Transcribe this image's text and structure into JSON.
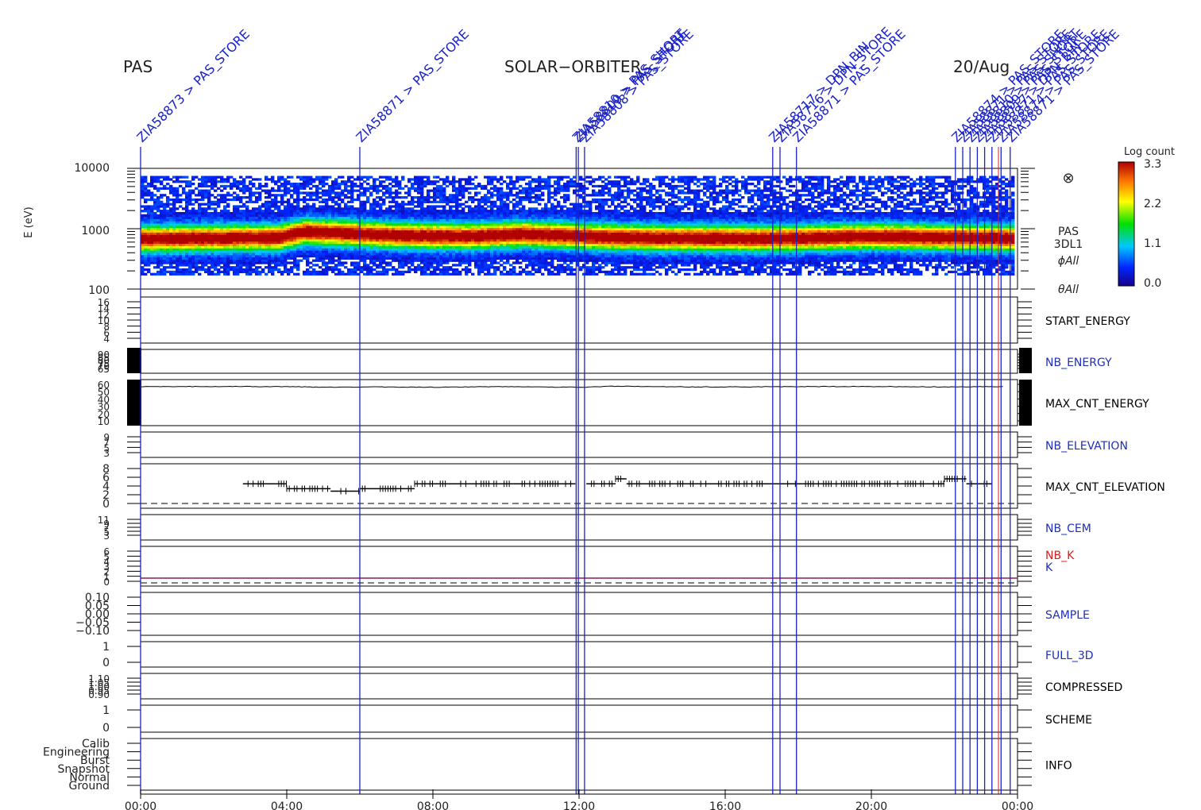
{
  "header": {
    "instrument": "PAS",
    "mission": "SOLAR−ORBITER",
    "date": "20/Aug"
  },
  "spectrogram": {
    "ylabel": "E (eV)",
    "ytick_labels": [
      "10000",
      "1000",
      "100"
    ],
    "side_labels": [
      "PAS",
      "3DL1",
      "ϕAll",
      "θAll"
    ],
    "look_direction_symbol": "⊗",
    "colorbar": {
      "title": "Log count",
      "ticks": [
        "3.3",
        "2.2",
        "1.1",
        "0.0"
      ]
    }
  },
  "x_axis": {
    "tick_labels": [
      "00:00",
      "04:00",
      "08:00",
      "12:00",
      "16:00",
      "20:00",
      "00:00"
    ]
  },
  "markers": [
    {
      "hour": 0.0,
      "label": "ZIA58873 > PAS_STORE"
    },
    {
      "hour": 6.0,
      "label": "ZIA58871 > PAS_STORE"
    },
    {
      "hour": 11.92,
      "label": "ZIA58810 > PAS_SHORT"
    },
    {
      "hour": 11.98,
      "label": "ZIA58809 > PAS_STORE"
    },
    {
      "hour": 12.15,
      "label": "ZIA58808 > PAS_STORE"
    },
    {
      "hour": 17.3,
      "label": "ZIA58717 > DPN_BIN"
    },
    {
      "hour": 17.5,
      "label": "ZIA58716 > DPN_STORE"
    },
    {
      "hour": 17.95,
      "label": "ZIA58871 > PAS_STORE"
    },
    {
      "hour": 22.3,
      "label": "ZIA58874 > PAS_STORE"
    },
    {
      "hour": 22.5,
      "label": "ZIA58871 > PAS_STORE"
    },
    {
      "hour": 22.7,
      "label": "ZIA58810 > PAS_SHORT"
    },
    {
      "hour": 22.9,
      "label": "ZIA58809 > PAS_STORE"
    },
    {
      "hour": 23.1,
      "label": "ZIA58717 > DPN_BIN"
    },
    {
      "hour": 23.3,
      "label": "ZIA58871 > PAS_STORE"
    },
    {
      "hour": 23.55,
      "label": "ZIA58874 > PAS_STORE"
    },
    {
      "hour": 23.8,
      "label": "ZIA58871 > PAS_STORE"
    }
  ],
  "panels": [
    {
      "id": "start_energy",
      "label": "START_ENERGY",
      "label_color": "#000000",
      "ticks": [
        "16",
        "14",
        "12",
        "10",
        "8",
        "6",
        "4"
      ]
    },
    {
      "id": "nb_energy",
      "label": "NB_ENERGY",
      "label_color": "#1f2fb8",
      "ticks": [
        "90",
        "85",
        "80",
        "75",
        "70",
        "65"
      ]
    },
    {
      "id": "max_cnt_energy",
      "label": "MAX_CNT_ENERGY",
      "label_color": "#000000",
      "ticks": [
        "60",
        "50",
        "40",
        "30",
        "20",
        "10"
      ]
    },
    {
      "id": "nb_elevation",
      "label": "NB_ELEVATION",
      "label_color": "#1f2fb8",
      "ticks": [
        "9",
        "7",
        "5",
        "3"
      ]
    },
    {
      "id": "max_cnt_elevation",
      "label": "MAX_CNT_ELEVATION",
      "label_color": "#000000",
      "ticks": [
        "8",
        "6",
        "4",
        "2",
        "0"
      ]
    },
    {
      "id": "nb_cem",
      "label": "NB_CEM",
      "label_color": "#1f2fb8",
      "ticks": [
        "11",
        "9",
        "7",
        "5",
        "3"
      ]
    },
    {
      "id": "k",
      "label": "K",
      "label_color": "#1f2fb8",
      "extra_label": "NB_K",
      "extra_label_color": "#d62020",
      "ticks": [
        "6",
        "5",
        "4",
        "3",
        "2",
        "1",
        "0"
      ]
    },
    {
      "id": "sample",
      "label": "SAMPLE",
      "label_color": "#1f2fb8",
      "ticks": [
        "0.10",
        "0.05",
        "0.00",
        "−0.05",
        "−0.10"
      ]
    },
    {
      "id": "full_3d",
      "label": "FULL_3D",
      "label_color": "#1f2fb8",
      "ticks": [
        "1",
        "0"
      ]
    },
    {
      "id": "compressed",
      "label": "COMPRESSED",
      "label_color": "#000000",
      "ticks": [
        "1.10",
        "1.05",
        "1.00",
        "0.95",
        "0.90"
      ]
    },
    {
      "id": "scheme",
      "label": "SCHEME",
      "label_color": "#000000",
      "ticks": [
        "1",
        "0"
      ]
    },
    {
      "id": "info",
      "label": "INFO",
      "label_color": "#000000",
      "ticks": [
        "Calib",
        "Engineering",
        "Burst",
        "Snapshot",
        "Normal",
        "Ground"
      ]
    }
  ],
  "chart_data": {
    "type": "heatmap",
    "title": "",
    "xlabel": "",
    "ylabel": "E (eV)",
    "x_range_hours": [
      0,
      24
    ],
    "y_range_eV": [
      100,
      10000
    ],
    "y_scale": "log",
    "colorbar_range": [
      0.0,
      3.3
    ],
    "peak_energy_track": {
      "hour": [
        0,
        2,
        3.8,
        4.5,
        5.5,
        7,
        9,
        10.5,
        12,
        13,
        15,
        17,
        18,
        20,
        22,
        24
      ],
      "energy_eV": [
        680,
        700,
        720,
        900,
        850,
        780,
        750,
        820,
        760,
        720,
        700,
        690,
        700,
        750,
        720,
        700
      ]
    },
    "max_cnt_energy": {
      "hour": [
        0,
        4,
        5,
        6.5,
        8,
        10,
        12,
        13,
        15,
        17,
        18,
        20,
        22,
        23.5
      ],
      "value": [
        57,
        57,
        56,
        56.5,
        56,
        57,
        56,
        57.5,
        56.5,
        56.5,
        57,
        57,
        56.5,
        57
      ]
    },
    "max_cnt_elevation_segments": [
      {
        "start_hour": 2.8,
        "end_hour": 4.0,
        "value": 4
      },
      {
        "start_hour": 4.0,
        "end_hour": 5.2,
        "value": 3
      },
      {
        "start_hour": 5.2,
        "end_hour": 6.0,
        "value": 2.5
      },
      {
        "start_hour": 6.0,
        "end_hour": 7.5,
        "value": 3
      },
      {
        "start_hour": 7.5,
        "end_hour": 11.9,
        "value": 4
      },
      {
        "start_hour": 12.2,
        "end_hour": 13.0,
        "value": 4
      },
      {
        "start_hour": 13.0,
        "end_hour": 13.3,
        "value": 5
      },
      {
        "start_hour": 13.3,
        "end_hour": 22.0,
        "value": 4
      },
      {
        "start_hour": 22.0,
        "end_hour": 22.6,
        "value": 5
      },
      {
        "start_hour": 22.6,
        "end_hour": 23.3,
        "value": 4
      }
    ],
    "k_value": 1
  }
}
